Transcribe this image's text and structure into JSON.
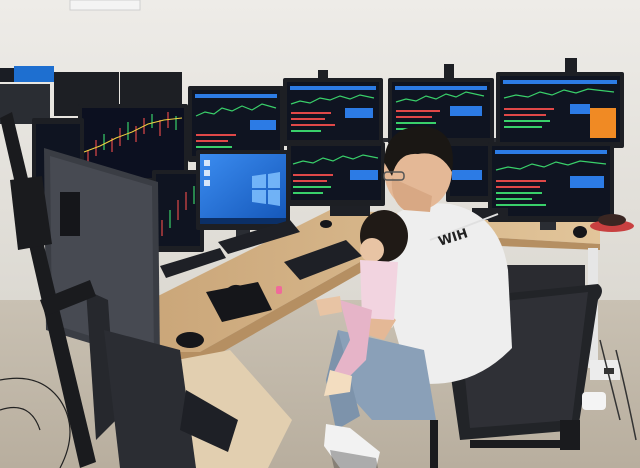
{
  "scene": {
    "colors": {
      "wall": "#e9e7e2",
      "floor": "#cbc3b6",
      "desk": "#d9b98c",
      "bezel": "#1d1f24",
      "screen_dark": "#101522",
      "screen_blue": "#1f6fd6",
      "chart_green": "#39d06a",
      "chart_red": "#e04848",
      "chart_blue": "#2c7be5",
      "chart_orange": "#f08a24",
      "shirt": "#eeeeee",
      "jeans": "#8aa0b8",
      "hair": "#1a1714",
      "chair": "#222428"
    },
    "shirt_print": "WIH"
  }
}
